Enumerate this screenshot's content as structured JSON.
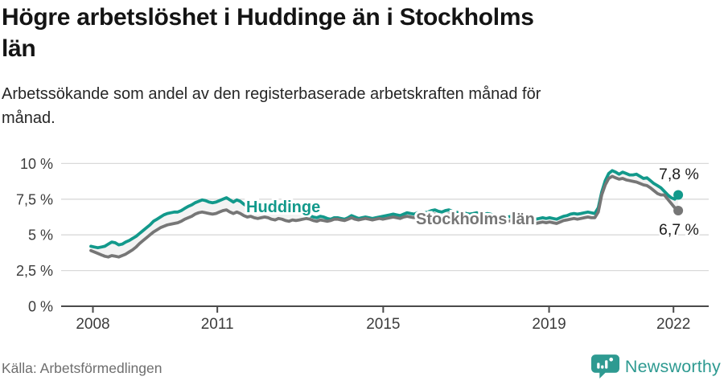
{
  "header": {
    "title": "Högre arbetslöshet i Huddinge än i Stockholms\nlän",
    "subtitle": "Arbetssökande som andel av den registerbaserade arbetskraften månad för\nmånad."
  },
  "footer": {
    "source": "Källa: Arbetsförmedlingen",
    "brand": "Newsworthy",
    "brand_color": "#2e9a91"
  },
  "chart_data": {
    "type": "line",
    "x_unit": "month",
    "x_range": [
      "2008-01",
      "2022-02"
    ],
    "x_ticks": [
      "2008",
      "2011",
      "2015",
      "2019",
      "2022"
    ],
    "x_tick_values": [
      2008,
      2011,
      2015,
      2019,
      2022
    ],
    "y_ticks": [
      "0 %",
      "2,5 %",
      "5 %",
      "7,5 %",
      "10 %"
    ],
    "y_tick_values": [
      0,
      2.5,
      5,
      7.5,
      10
    ],
    "ylim": [
      0,
      10.5
    ],
    "grid": true,
    "legend_position": "inline-labels",
    "area_fill_between": "#f3f3f3",
    "axis_color": "#4a4a4a",
    "grid_color": "#d9d9d9",
    "tick_label_color": "#3c3c3c",
    "annotation_color": "#1c1c1c",
    "series": [
      {
        "name": "Huddinge",
        "color": "#12998b",
        "end_label": "7,8 %",
        "end_value": 7.8,
        "values": [
          4.2,
          4.15,
          4.1,
          4.15,
          4.2,
          4.35,
          4.5,
          4.45,
          4.3,
          4.35,
          4.5,
          4.6,
          4.75,
          4.9,
          5.1,
          5.3,
          5.5,
          5.7,
          5.95,
          6.1,
          6.25,
          6.4,
          6.5,
          6.55,
          6.6,
          6.6,
          6.7,
          6.85,
          7.0,
          7.1,
          7.25,
          7.35,
          7.45,
          7.4,
          7.3,
          7.25,
          7.3,
          7.4,
          7.5,
          7.6,
          7.45,
          7.3,
          7.45,
          7.35,
          7.15,
          7.0,
          7.05,
          6.95,
          6.9,
          6.95,
          7.0,
          6.9,
          6.85,
          6.8,
          6.9,
          6.85,
          6.75,
          6.7,
          6.75,
          6.7,
          6.55,
          6.5,
          6.45,
          6.35,
          6.25,
          6.2,
          6.3,
          6.25,
          6.15,
          6.1,
          6.2,
          6.2,
          6.15,
          6.1,
          6.2,
          6.35,
          6.25,
          6.15,
          6.2,
          6.25,
          6.2,
          6.15,
          6.2,
          6.25,
          6.3,
          6.35,
          6.4,
          6.45,
          6.4,
          6.35,
          6.45,
          6.55,
          6.5,
          6.45,
          6.55,
          6.6,
          6.55,
          6.6,
          6.7,
          6.75,
          6.65,
          6.6,
          6.7,
          6.75,
          6.65,
          6.6,
          6.55,
          6.6,
          6.5,
          6.45,
          6.5,
          6.55,
          6.45,
          6.4,
          6.5,
          6.45,
          6.35,
          6.3,
          6.35,
          6.3,
          6.25,
          6.3,
          6.35,
          6.3,
          6.2,
          6.15,
          6.25,
          6.2,
          6.1,
          6.15,
          6.2,
          6.15,
          6.2,
          6.15,
          6.1,
          6.2,
          6.3,
          6.35,
          6.45,
          6.5,
          6.45,
          6.5,
          6.55,
          6.6,
          6.55,
          6.5,
          6.9,
          8.0,
          8.8,
          9.3,
          9.5,
          9.4,
          9.25,
          9.4,
          9.3,
          9.2,
          9.2,
          9.25,
          9.1,
          8.95,
          9.0,
          8.8,
          8.6,
          8.45,
          8.3,
          8.05,
          7.8,
          7.6,
          7.5,
          7.8
        ]
      },
      {
        "name": "Stockholms län",
        "color": "#767676",
        "end_label": "6,7 %",
        "end_value": 6.7,
        "values": [
          3.9,
          3.8,
          3.7,
          3.6,
          3.5,
          3.45,
          3.55,
          3.5,
          3.45,
          3.55,
          3.65,
          3.8,
          3.95,
          4.15,
          4.4,
          4.6,
          4.8,
          5.0,
          5.2,
          5.35,
          5.5,
          5.6,
          5.7,
          5.75,
          5.8,
          5.85,
          5.95,
          6.1,
          6.2,
          6.3,
          6.45,
          6.55,
          6.6,
          6.55,
          6.5,
          6.45,
          6.5,
          6.6,
          6.7,
          6.75,
          6.6,
          6.5,
          6.6,
          6.5,
          6.35,
          6.25,
          6.3,
          6.2,
          6.15,
          6.2,
          6.25,
          6.2,
          6.1,
          6.05,
          6.15,
          6.1,
          6.0,
          5.95,
          6.05,
          6.0,
          6.05,
          6.1,
          6.15,
          6.1,
          6.0,
          5.95,
          6.05,
          6.0,
          5.95,
          6.0,
          6.1,
          6.1,
          6.05,
          6.0,
          6.1,
          6.2,
          6.1,
          6.05,
          6.1,
          6.15,
          6.1,
          6.05,
          6.1,
          6.15,
          6.1,
          6.15,
          6.2,
          6.25,
          6.2,
          6.15,
          6.25,
          6.3,
          6.25,
          6.2,
          6.3,
          6.35,
          6.3,
          6.35,
          6.4,
          6.45,
          6.35,
          6.3,
          6.4,
          6.45,
          6.35,
          6.3,
          6.25,
          6.3,
          6.2,
          6.15,
          6.2,
          6.25,
          6.15,
          6.1,
          6.2,
          6.15,
          6.05,
          6.0,
          6.05,
          6.0,
          5.95,
          6.0,
          6.05,
          6.0,
          5.9,
          5.85,
          5.95,
          5.9,
          5.8,
          5.85,
          5.9,
          5.85,
          5.9,
          5.85,
          5.8,
          5.9,
          6.0,
          6.05,
          6.1,
          6.15,
          6.1,
          6.15,
          6.2,
          6.25,
          6.2,
          6.2,
          6.6,
          7.8,
          8.5,
          8.95,
          9.1,
          9.0,
          8.9,
          8.95,
          8.85,
          8.8,
          8.75,
          8.7,
          8.6,
          8.5,
          8.45,
          8.3,
          8.1,
          7.9,
          7.8,
          7.8,
          7.5,
          7.2,
          6.9,
          6.7
        ]
      }
    ]
  }
}
